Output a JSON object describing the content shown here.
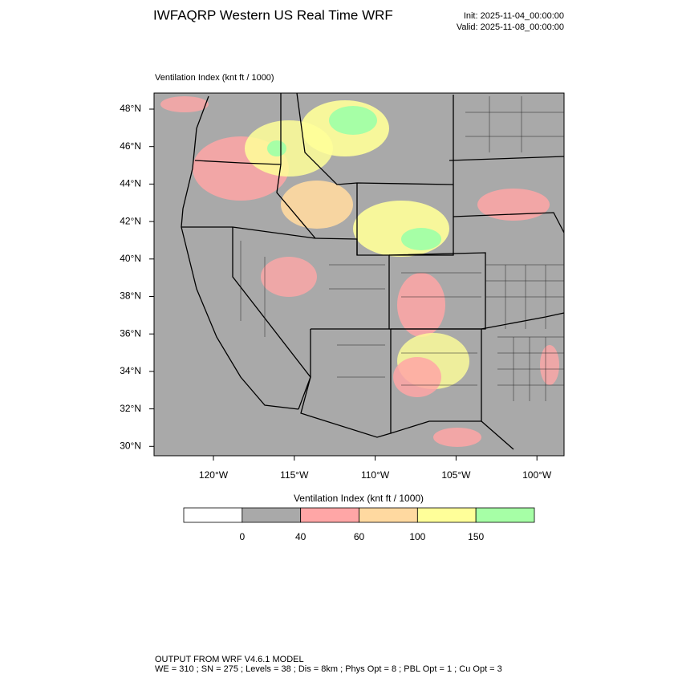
{
  "header": {
    "title": "IWFAQRP Western US Real Time WRF",
    "init": "Init: 2025-11-04_00:00:00",
    "valid": "Valid: 2025-11-08_00:00:00"
  },
  "map": {
    "label": "Ventilation Index   (knt ft / 1000)",
    "lat_labels": [
      "48°N",
      "46°N",
      "44°N",
      "42°N",
      "40°N",
      "38°N",
      "36°N",
      "34°N",
      "32°N",
      "30°N"
    ],
    "lon_labels": [
      "120°W",
      "115°W",
      "110°W",
      "105°W",
      "100°W"
    ]
  },
  "colorbar": {
    "title": "Ventilation Index   (knt ft / 1000)",
    "levels": [
      0,
      40,
      60,
      100,
      150
    ],
    "colors": [
      "#ffffff",
      "#a9a9a9",
      "#ffa6a6",
      "#ffd9a0",
      "#ffff99",
      "#a6ffa6"
    ]
  },
  "footer": {
    "line1": "OUTPUT FROM WRF V4.6.1 MODEL",
    "line2": "WE = 310 ; SN = 275 ; Levels = 38 ; Dis = 8km ; Phys Opt = 8 ; PBL Opt = 1 ; Cu Opt = 3"
  }
}
